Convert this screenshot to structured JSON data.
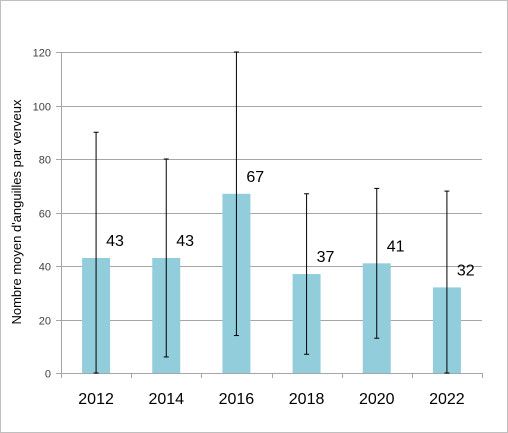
{
  "chart_data": {
    "type": "bar",
    "title": "",
    "xlabel": "",
    "ylabel": "Nombre moyen d'anguilles par verveux",
    "categories": [
      "2012",
      "2014",
      "2016",
      "2018",
      "2020",
      "2022"
    ],
    "values": [
      43,
      43,
      67,
      37,
      41,
      32
    ],
    "data_labels": [
      "43",
      "43",
      "67",
      "37",
      "41",
      "32"
    ],
    "error_low": [
      0,
      6,
      14,
      7,
      13,
      0
    ],
    "error_high": [
      90,
      80,
      120,
      67,
      69,
      68
    ],
    "ylim": [
      0,
      120
    ],
    "yticks": [
      0,
      20,
      40,
      60,
      80,
      100,
      120
    ],
    "ytick_labels": [
      "0",
      "20",
      "40",
      "60",
      "80",
      "100",
      "120"
    ],
    "grid": true,
    "legend": "none",
    "colors": {
      "bar": "#92cddc",
      "gridline": "#a6a6a6",
      "axis": "#a6a6a6",
      "error_bar": "#000000"
    }
  }
}
